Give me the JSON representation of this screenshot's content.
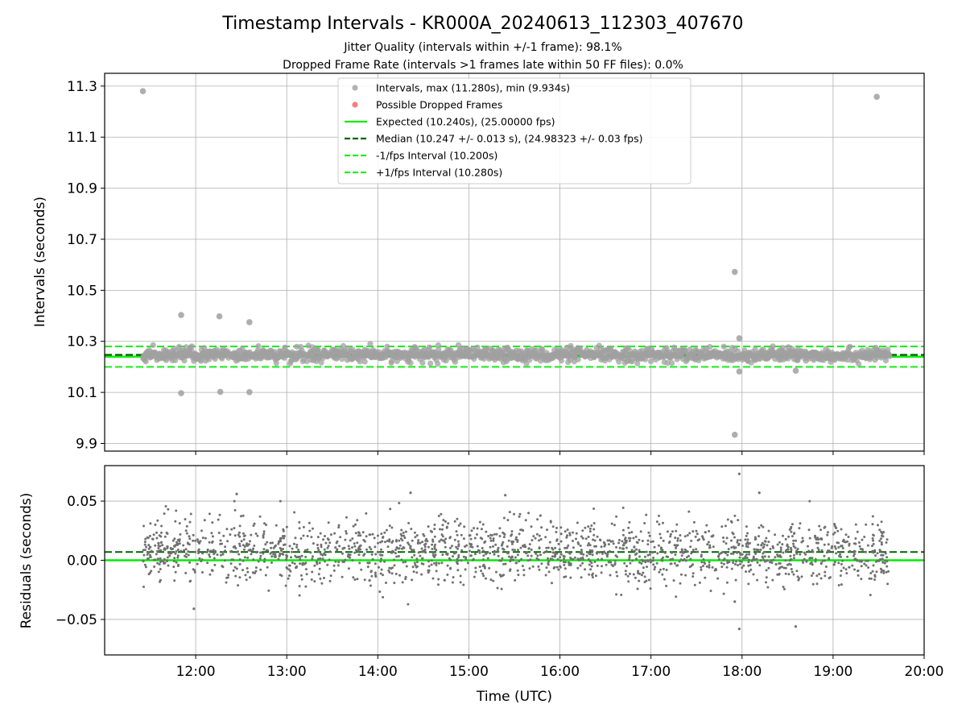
{
  "figure": {
    "title": "Timestamp Intervals - KR000A_20240613_112303_407670",
    "subtitle_1": "Jitter Quality (intervals within +/-1 frame): 98.1%",
    "subtitle_2": "Dropped Frame Rate (intervals >1 frames late within 50 FF files): 0.0%"
  },
  "colors": {
    "intervals": "#a0a0a0",
    "dropped": "#ff5a5a",
    "expected": "#00ee00",
    "median": "#006400",
    "fps_interval": "#22ee22",
    "residuals": "#707070"
  },
  "chart_data": [
    {
      "type": "scatter",
      "id": "intervals_panel",
      "xlabel": "",
      "ylabel": "Intervals (seconds)",
      "x_unit": "hours (UTC)",
      "xlim": [
        11.0,
        20.0
      ],
      "ylim": [
        9.87,
        11.35
      ],
      "yticks": [
        9.9,
        10.1,
        10.3,
        10.5,
        10.7,
        10.9,
        11.1,
        11.3
      ],
      "ytick_labels": [
        "9.9",
        "10.1",
        "10.3",
        "10.5",
        "10.7",
        "10.9",
        "11.1",
        "11.3"
      ],
      "grid": true,
      "legend_position": "top-center",
      "legend": [
        {
          "label": "Intervals, max (11.280s), min (9.934s)",
          "kind": "marker",
          "color": "#a0a0a0"
        },
        {
          "label": "Possible Dropped Frames",
          "kind": "marker",
          "color": "#ff5a5a"
        },
        {
          "label": "Expected (10.240s), (25.00000 fps)",
          "kind": "line",
          "color": "#00ee00",
          "dash": false
        },
        {
          "label": "Median (10.247 +/- 0.013 s), (24.98323 +/- 0.03 fps)",
          "kind": "line",
          "color": "#006400",
          "dash": true
        },
        {
          "label": "-1/fps Interval (10.200s)",
          "kind": "line",
          "color": "#22ee22",
          "dash": true
        },
        {
          "label": "+1/fps Interval (10.280s)",
          "kind": "line",
          "color": "#22ee22",
          "dash": true
        }
      ],
      "reference_lines": {
        "expected": 10.24,
        "median": 10.247,
        "minus_fps": 10.2,
        "plus_fps": 10.28
      },
      "band": {
        "x_start": 11.42,
        "x_end": 19.62,
        "center": 10.247,
        "spread": 0.013
      },
      "outliers": [
        {
          "x": 11.42,
          "y": 11.28
        },
        {
          "x": 19.48,
          "y": 11.258
        },
        {
          "x": 11.84,
          "y": 10.403
        },
        {
          "x": 12.26,
          "y": 10.398
        },
        {
          "x": 12.59,
          "y": 10.375
        },
        {
          "x": 11.84,
          "y": 10.097
        },
        {
          "x": 12.27,
          "y": 10.102
        },
        {
          "x": 12.59,
          "y": 10.101
        },
        {
          "x": 17.92,
          "y": 10.572
        },
        {
          "x": 17.97,
          "y": 10.312
        },
        {
          "x": 17.97,
          "y": 10.182
        },
        {
          "x": 18.59,
          "y": 10.185
        },
        {
          "x": 17.92,
          "y": 9.934
        }
      ],
      "dropped_frames": []
    },
    {
      "type": "scatter",
      "id": "residuals_panel",
      "xlabel": "Time (UTC)",
      "ylabel": "Residuals (seconds)",
      "x_unit": "hours (UTC)",
      "xlim": [
        11.0,
        20.0
      ],
      "ylim": [
        -0.08,
        0.08
      ],
      "yticks": [
        -0.05,
        0.0,
        0.05
      ],
      "ytick_labels": [
        "−0.05",
        "0.00",
        "0.05"
      ],
      "xticks": [
        12,
        13,
        14,
        15,
        16,
        17,
        18,
        19,
        20
      ],
      "xtick_labels": [
        "12:00",
        "13:00",
        "14:00",
        "15:00",
        "16:00",
        "17:00",
        "18:00",
        "19:00",
        "20:00"
      ],
      "grid": true,
      "reference_lines": {
        "zero": 0.0,
        "median_offset": 0.007
      },
      "band": {
        "x_start": 11.42,
        "x_end": 19.62,
        "center": 0.007,
        "spread": 0.013
      },
      "outliers": [
        {
          "x": 17.97,
          "y": 0.073
        },
        {
          "x": 18.19,
          "y": 0.057
        },
        {
          "x": 12.45,
          "y": 0.056
        },
        {
          "x": 14.36,
          "y": 0.057
        },
        {
          "x": 15.4,
          "y": 0.055
        },
        {
          "x": 11.98,
          "y": -0.041
        },
        {
          "x": 17.97,
          "y": -0.058
        },
        {
          "x": 18.59,
          "y": -0.056
        },
        {
          "x": 17.92,
          "y": -0.035
        }
      ]
    }
  ]
}
